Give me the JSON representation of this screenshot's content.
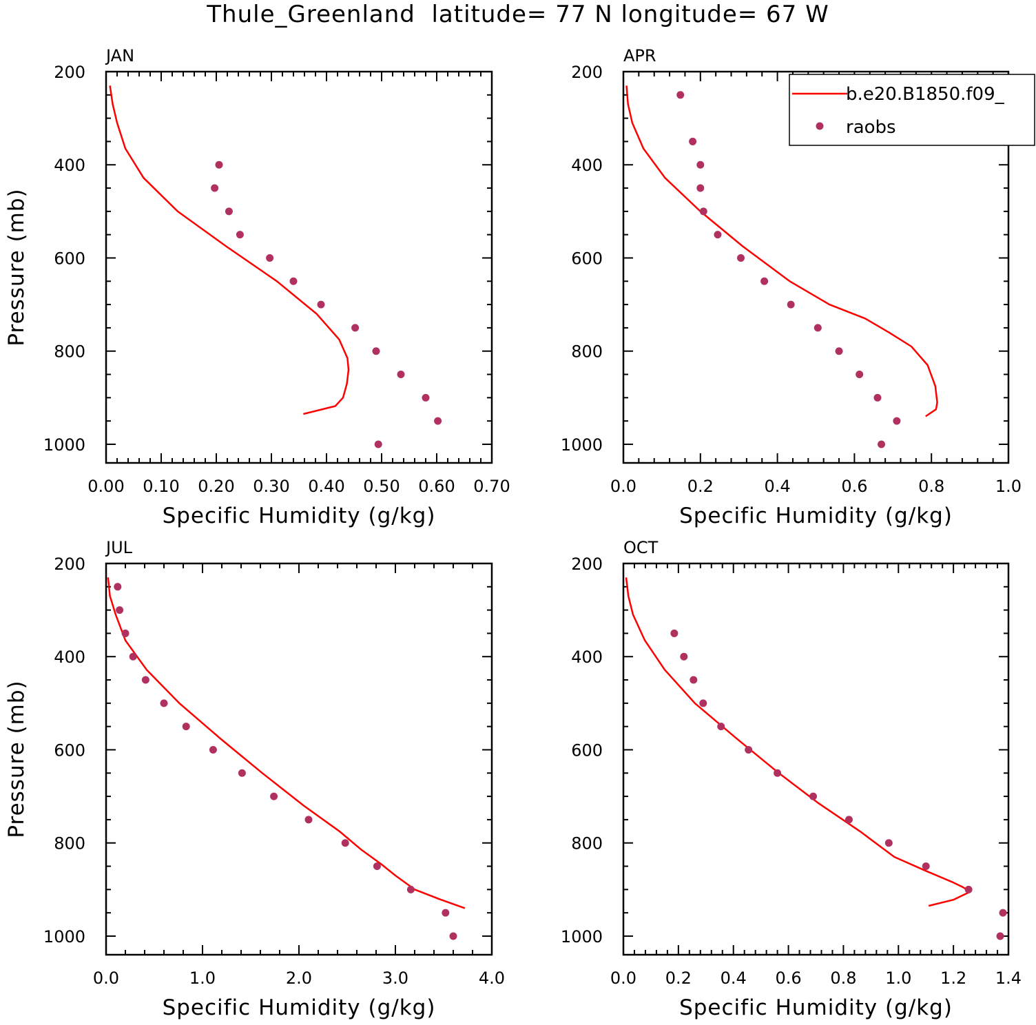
{
  "figure": {
    "title": "Thule_Greenland  latitude= 77 N longitude= 67 W"
  },
  "legend": {
    "model_label": "b.e20.B1850.f09_",
    "obs_label": "raobs"
  },
  "colors": {
    "model_line": "#ff0000",
    "obs_marker": "#b03060",
    "axes": "#000000",
    "background": "#ffffff"
  },
  "chart_data": [
    {
      "type": "line",
      "panel_label": "JAN",
      "xlabel": "Specific Humidity (g/kg)",
      "ylabel": "Pressure (mb)",
      "xlim": [
        0.0,
        0.7
      ],
      "ylim": [
        1040,
        200
      ],
      "y_inverted": true,
      "x_ticks": [
        "0.00",
        "0.10",
        "0.20",
        "0.30",
        "0.40",
        "0.50",
        "0.60",
        "0.70"
      ],
      "x_tick_values": [
        0.0,
        0.1,
        0.2,
        0.3,
        0.4,
        0.5,
        0.6,
        0.7
      ],
      "y_ticks": [
        "200",
        "400",
        "600",
        "800",
        "1000"
      ],
      "y_tick_values": [
        200,
        400,
        600,
        800,
        1000
      ],
      "series": [
        {
          "name": "b.e20.B1850.f09_",
          "kind": "line",
          "x": [
            0.007,
            0.012,
            0.02,
            0.035,
            0.068,
            0.13,
            0.218,
            0.31,
            0.382,
            0.423,
            0.438,
            0.44,
            0.437,
            0.43,
            0.416,
            0.358
          ],
          "y": [
            230,
            270,
            310,
            365,
            428,
            500,
            575,
            650,
            720,
            775,
            815,
            840,
            870,
            900,
            918,
            935
          ]
        },
        {
          "name": "raobs",
          "kind": "scatter",
          "x": [
            0.205,
            0.197,
            0.223,
            0.243,
            0.297,
            0.34,
            0.39,
            0.452,
            0.49,
            0.535,
            0.58,
            0.602,
            0.494
          ],
          "y": [
            400,
            450,
            500,
            550,
            600,
            650,
            700,
            750,
            800,
            850,
            900,
            950,
            1000
          ]
        }
      ]
    },
    {
      "type": "line",
      "panel_label": "APR",
      "xlabel": "Specific Humidity (g/kg)",
      "ylabel": "",
      "xlim": [
        0.0,
        1.0
      ],
      "ylim": [
        1040,
        200
      ],
      "y_inverted": true,
      "x_ticks": [
        "0.0",
        "0.2",
        "0.4",
        "0.6",
        "0.8",
        "1.0"
      ],
      "x_tick_values": [
        0.0,
        0.2,
        0.4,
        0.6,
        0.8,
        1.0
      ],
      "y_ticks": [
        "200",
        "400",
        "600",
        "800",
        "1000"
      ],
      "y_tick_values": [
        200,
        400,
        600,
        800,
        1000
      ],
      "series": [
        {
          "name": "b.e20.B1850.f09_",
          "kind": "line",
          "x": [
            0.008,
            0.012,
            0.023,
            0.052,
            0.108,
            0.2,
            0.31,
            0.432,
            0.535,
            0.628,
            0.69,
            0.748,
            0.79,
            0.81,
            0.815,
            0.812,
            0.785
          ],
          "y": [
            230,
            270,
            310,
            365,
            428,
            500,
            575,
            650,
            700,
            730,
            760,
            790,
            830,
            875,
            910,
            925,
            940
          ]
        },
        {
          "name": "raobs",
          "kind": "scatter",
          "x": [
            0.148,
            0.18,
            0.2,
            0.2,
            0.208,
            0.245,
            0.305,
            0.366,
            0.435,
            0.505,
            0.56,
            0.613,
            0.66,
            0.71,
            0.67
          ],
          "y": [
            250,
            350,
            400,
            450,
            500,
            550,
            600,
            650,
            700,
            750,
            800,
            850,
            900,
            950,
            1000
          ]
        }
      ]
    },
    {
      "type": "line",
      "panel_label": "JUL",
      "xlabel": "Specific Humidity (g/kg)",
      "ylabel": "Pressure (mb)",
      "xlim": [
        0.0,
        4.0
      ],
      "ylim": [
        1040,
        200
      ],
      "y_inverted": true,
      "x_ticks": [
        "0.0",
        "1.0",
        "2.0",
        "3.0",
        "4.0"
      ],
      "x_tick_values": [
        0.0,
        1.0,
        2.0,
        3.0,
        4.0
      ],
      "y_ticks": [
        "200",
        "400",
        "600",
        "800",
        "1000"
      ],
      "y_tick_values": [
        200,
        400,
        600,
        800,
        1000
      ],
      "series": [
        {
          "name": "b.e20.B1850.f09_",
          "kind": "line",
          "x": [
            0.02,
            0.04,
            0.1,
            0.2,
            0.42,
            0.76,
            1.18,
            1.62,
            2.05,
            2.42,
            2.65,
            2.85,
            3.0,
            3.2,
            3.45,
            3.72
          ],
          "y": [
            230,
            270,
            310,
            365,
            428,
            500,
            575,
            650,
            720,
            775,
            815,
            845,
            870,
            900,
            920,
            940
          ]
        },
        {
          "name": "raobs",
          "kind": "scatter",
          "x": [
            0.12,
            0.14,
            0.2,
            0.28,
            0.41,
            0.6,
            0.83,
            1.11,
            1.41,
            1.74,
            2.1,
            2.48,
            2.81,
            3.16,
            3.52,
            3.6
          ],
          "y": [
            250,
            300,
            350,
            400,
            450,
            500,
            550,
            600,
            650,
            700,
            750,
            800,
            850,
            900,
            950,
            1000
          ]
        }
      ]
    },
    {
      "type": "line",
      "panel_label": "OCT",
      "xlabel": "Specific Humidity (g/kg)",
      "ylabel": "",
      "xlim": [
        0.0,
        1.4
      ],
      "ylim": [
        1040,
        200
      ],
      "y_inverted": true,
      "x_ticks": [
        "0.0",
        "0.2",
        "0.4",
        "0.6",
        "0.8",
        "1.0",
        "1.2",
        "1.4"
      ],
      "x_tick_values": [
        0.0,
        0.2,
        0.4,
        0.6,
        0.8,
        1.0,
        1.2,
        1.4
      ],
      "y_ticks": [
        "200",
        "400",
        "600",
        "800",
        "1000"
      ],
      "y_tick_values": [
        200,
        400,
        600,
        800,
        1000
      ],
      "series": [
        {
          "name": "b.e20.B1850.f09_",
          "kind": "line",
          "x": [
            0.01,
            0.018,
            0.035,
            0.078,
            0.15,
            0.26,
            0.41,
            0.565,
            0.71,
            0.86,
            0.985,
            1.1,
            1.2,
            1.235,
            1.26,
            1.2,
            1.11
          ],
          "y": [
            230,
            270,
            310,
            365,
            428,
            500,
            575,
            650,
            715,
            775,
            830,
            860,
            885,
            895,
            905,
            922,
            935
          ]
        },
        {
          "name": "raobs",
          "kind": "scatter",
          "x": [
            0.185,
            0.22,
            0.255,
            0.29,
            0.355,
            0.455,
            0.56,
            0.69,
            0.82,
            0.965,
            1.1,
            1.255,
            1.38,
            1.37
          ],
          "y": [
            350,
            400,
            450,
            500,
            550,
            600,
            650,
            700,
            750,
            800,
            850,
            900,
            950,
            1000
          ]
        }
      ]
    }
  ]
}
